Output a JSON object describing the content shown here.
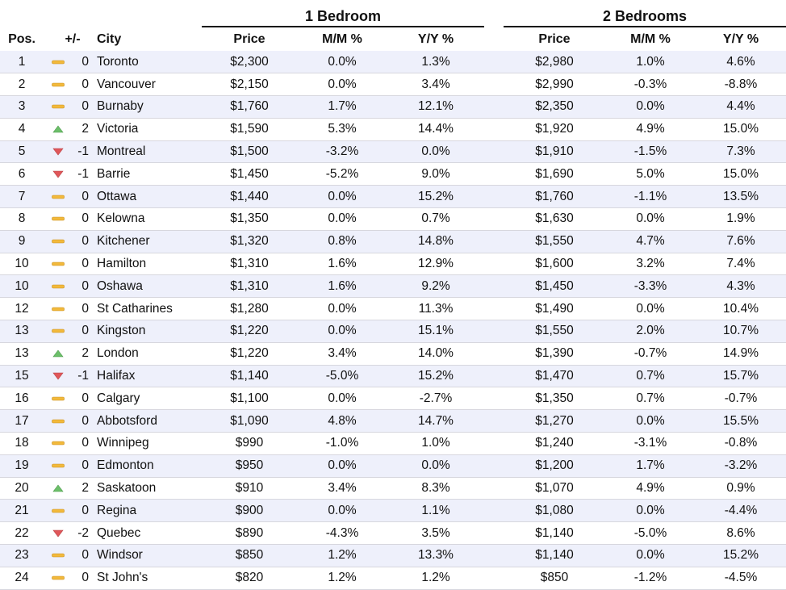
{
  "chart_data": {
    "type": "table",
    "group_headers": [
      "1 Bedroom",
      "2 Bedrooms"
    ],
    "column_headers": {
      "pos": "Pos.",
      "change": "+/-",
      "city": "City",
      "b1_price": "Price",
      "b1_mm": "M/M %",
      "b1_yy": "Y/Y %",
      "b2_price": "Price",
      "b2_mm": "M/M %",
      "b2_yy": "Y/Y %"
    },
    "rows": [
      {
        "pos": "1",
        "trend": "flat",
        "change": "0",
        "city": "Toronto",
        "b1_price": "$2,300",
        "b1_mm": "0.0%",
        "b1_yy": "1.3%",
        "b2_price": "$2,980",
        "b2_mm": "1.0%",
        "b2_yy": "4.6%"
      },
      {
        "pos": "2",
        "trend": "flat",
        "change": "0",
        "city": "Vancouver",
        "b1_price": "$2,150",
        "b1_mm": "0.0%",
        "b1_yy": "3.4%",
        "b2_price": "$2,990",
        "b2_mm": "-0.3%",
        "b2_yy": "-8.8%"
      },
      {
        "pos": "3",
        "trend": "flat",
        "change": "0",
        "city": "Burnaby",
        "b1_price": "$1,760",
        "b1_mm": "1.7%",
        "b1_yy": "12.1%",
        "b2_price": "$2,350",
        "b2_mm": "0.0%",
        "b2_yy": "4.4%"
      },
      {
        "pos": "4",
        "trend": "up",
        "change": "2",
        "city": "Victoria",
        "b1_price": "$1,590",
        "b1_mm": "5.3%",
        "b1_yy": "14.4%",
        "b2_price": "$1,920",
        "b2_mm": "4.9%",
        "b2_yy": "15.0%"
      },
      {
        "pos": "5",
        "trend": "down",
        "change": "-1",
        "city": "Montreal",
        "b1_price": "$1,500",
        "b1_mm": "-3.2%",
        "b1_yy": "0.0%",
        "b2_price": "$1,910",
        "b2_mm": "-1.5%",
        "b2_yy": "7.3%"
      },
      {
        "pos": "6",
        "trend": "down",
        "change": "-1",
        "city": "Barrie",
        "b1_price": "$1,450",
        "b1_mm": "-5.2%",
        "b1_yy": "9.0%",
        "b2_price": "$1,690",
        "b2_mm": "5.0%",
        "b2_yy": "15.0%"
      },
      {
        "pos": "7",
        "trend": "flat",
        "change": "0",
        "city": "Ottawa",
        "b1_price": "$1,440",
        "b1_mm": "0.0%",
        "b1_yy": "15.2%",
        "b2_price": "$1,760",
        "b2_mm": "-1.1%",
        "b2_yy": "13.5%"
      },
      {
        "pos": "8",
        "trend": "flat",
        "change": "0",
        "city": "Kelowna",
        "b1_price": "$1,350",
        "b1_mm": "0.0%",
        "b1_yy": "0.7%",
        "b2_price": "$1,630",
        "b2_mm": "0.0%",
        "b2_yy": "1.9%"
      },
      {
        "pos": "9",
        "trend": "flat",
        "change": "0",
        "city": "Kitchener",
        "b1_price": "$1,320",
        "b1_mm": "0.8%",
        "b1_yy": "14.8%",
        "b2_price": "$1,550",
        "b2_mm": "4.7%",
        "b2_yy": "7.6%"
      },
      {
        "pos": "10",
        "trend": "flat",
        "change": "0",
        "city": "Hamilton",
        "b1_price": "$1,310",
        "b1_mm": "1.6%",
        "b1_yy": "12.9%",
        "b2_price": "$1,600",
        "b2_mm": "3.2%",
        "b2_yy": "7.4%"
      },
      {
        "pos": "10",
        "trend": "flat",
        "change": "0",
        "city": "Oshawa",
        "b1_price": "$1,310",
        "b1_mm": "1.6%",
        "b1_yy": "9.2%",
        "b2_price": "$1,450",
        "b2_mm": "-3.3%",
        "b2_yy": "4.3%"
      },
      {
        "pos": "12",
        "trend": "flat",
        "change": "0",
        "city": "St Catharines",
        "b1_price": "$1,280",
        "b1_mm": "0.0%",
        "b1_yy": "11.3%",
        "b2_price": "$1,490",
        "b2_mm": "0.0%",
        "b2_yy": "10.4%"
      },
      {
        "pos": "13",
        "trend": "flat",
        "change": "0",
        "city": "Kingston",
        "b1_price": "$1,220",
        "b1_mm": "0.0%",
        "b1_yy": "15.1%",
        "b2_price": "$1,550",
        "b2_mm": "2.0%",
        "b2_yy": "10.7%"
      },
      {
        "pos": "13",
        "trend": "up",
        "change": "2",
        "city": "London",
        "b1_price": "$1,220",
        "b1_mm": "3.4%",
        "b1_yy": "14.0%",
        "b2_price": "$1,390",
        "b2_mm": "-0.7%",
        "b2_yy": "14.9%"
      },
      {
        "pos": "15",
        "trend": "down",
        "change": "-1",
        "city": "Halifax",
        "b1_price": "$1,140",
        "b1_mm": "-5.0%",
        "b1_yy": "15.2%",
        "b2_price": "$1,470",
        "b2_mm": "0.7%",
        "b2_yy": "15.7%"
      },
      {
        "pos": "16",
        "trend": "flat",
        "change": "0",
        "city": "Calgary",
        "b1_price": "$1,100",
        "b1_mm": "0.0%",
        "b1_yy": "-2.7%",
        "b2_price": "$1,350",
        "b2_mm": "0.7%",
        "b2_yy": "-0.7%"
      },
      {
        "pos": "17",
        "trend": "flat",
        "change": "0",
        "city": "Abbotsford",
        "b1_price": "$1,090",
        "b1_mm": "4.8%",
        "b1_yy": "14.7%",
        "b2_price": "$1,270",
        "b2_mm": "0.0%",
        "b2_yy": "15.5%"
      },
      {
        "pos": "18",
        "trend": "flat",
        "change": "0",
        "city": "Winnipeg",
        "b1_price": "$990",
        "b1_mm": "-1.0%",
        "b1_yy": "1.0%",
        "b2_price": "$1,240",
        "b2_mm": "-3.1%",
        "b2_yy": "-0.8%"
      },
      {
        "pos": "19",
        "trend": "flat",
        "change": "0",
        "city": "Edmonton",
        "b1_price": "$950",
        "b1_mm": "0.0%",
        "b1_yy": "0.0%",
        "b2_price": "$1,200",
        "b2_mm": "1.7%",
        "b2_yy": "-3.2%"
      },
      {
        "pos": "20",
        "trend": "up",
        "change": "2",
        "city": "Saskatoon",
        "b1_price": "$910",
        "b1_mm": "3.4%",
        "b1_yy": "8.3%",
        "b2_price": "$1,070",
        "b2_mm": "4.9%",
        "b2_yy": "0.9%"
      },
      {
        "pos": "21",
        "trend": "flat",
        "change": "0",
        "city": "Regina",
        "b1_price": "$900",
        "b1_mm": "0.0%",
        "b1_yy": "1.1%",
        "b2_price": "$1,080",
        "b2_mm": "0.0%",
        "b2_yy": "-4.4%"
      },
      {
        "pos": "22",
        "trend": "down",
        "change": "-2",
        "city": "Quebec",
        "b1_price": "$890",
        "b1_mm": "-4.3%",
        "b1_yy": "3.5%",
        "b2_price": "$1,140",
        "b2_mm": "-5.0%",
        "b2_yy": "8.6%"
      },
      {
        "pos": "23",
        "trend": "flat",
        "change": "0",
        "city": "Windsor",
        "b1_price": "$850",
        "b1_mm": "1.2%",
        "b1_yy": "13.3%",
        "b2_price": "$1,140",
        "b2_mm": "0.0%",
        "b2_yy": "15.2%"
      },
      {
        "pos": "24",
        "trend": "flat",
        "change": "0",
        "city": "St John's",
        "b1_price": "$820",
        "b1_mm": "1.2%",
        "b1_yy": "1.2%",
        "b2_price": "$850",
        "b2_mm": "-1.2%",
        "b2_yy": "-4.5%"
      }
    ]
  },
  "colors": {
    "row_stripe": "#eef0fb",
    "row_alt": "#ffffff",
    "trend_up": "#6cbf6a",
    "trend_down": "#e0575a",
    "trend_flat": "#f2b93b",
    "grid_line": "#d7d7de"
  },
  "icons": {
    "up": "triangle-up-icon",
    "down": "triangle-down-icon",
    "flat": "dash-icon"
  }
}
